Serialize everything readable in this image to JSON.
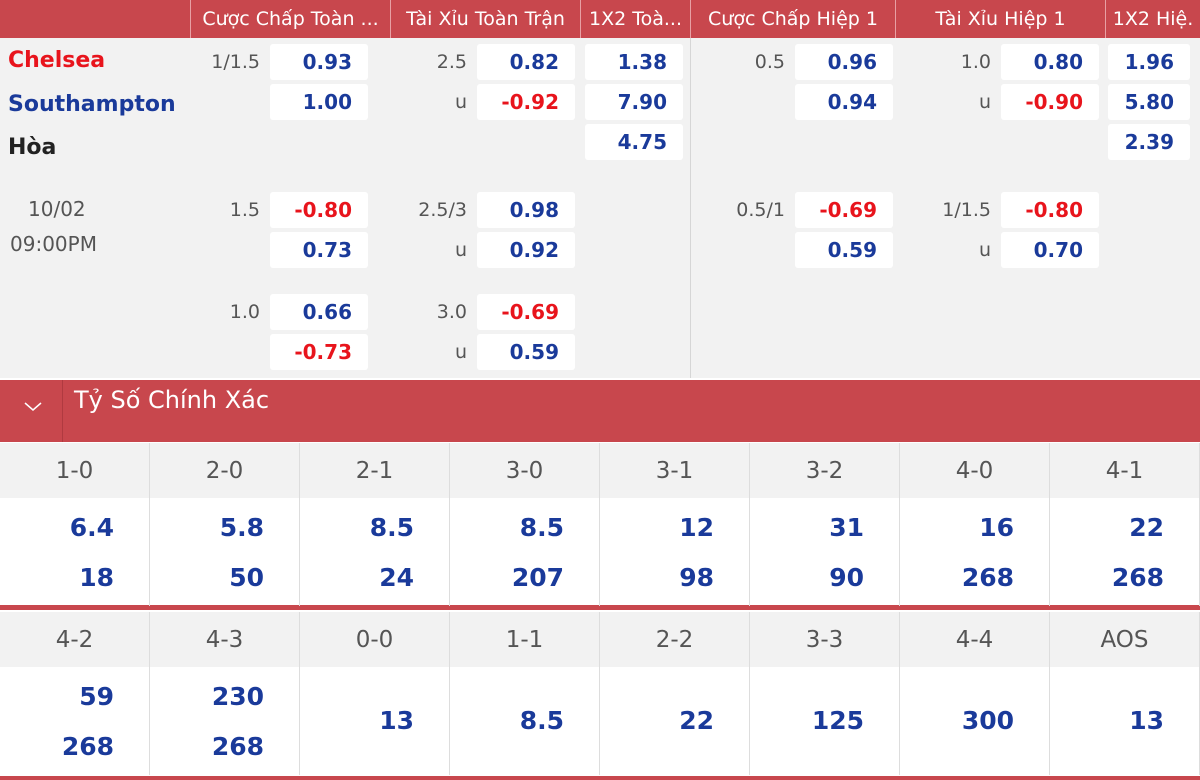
{
  "header": {
    "columns": [
      "Cược Chấp Toàn ...",
      "Tài Xỉu Toàn Trận",
      "1X2 Toà...",
      "Cược Chấp Hiệp 1",
      "Tài Xỉu Hiệp 1",
      "1X2 Hiệ."
    ]
  },
  "match": {
    "home": "Chelsea",
    "away": "Southampton",
    "draw": "Hòa",
    "date": "10/02",
    "time": "09:00PM"
  },
  "odds_groups": [
    {
      "ft_handicap": {
        "line": "1/1.5",
        "odds": [
          "0.93",
          "1.00"
        ]
      },
      "ft_over_under": {
        "line": "2.5",
        "under_label": "u",
        "odds": [
          "0.82",
          "-0.92"
        ]
      },
      "ft_1x2": {
        "odds": [
          "1.38",
          "7.90",
          "4.75"
        ]
      },
      "h1_handicap": {
        "line": "0.5",
        "odds": [
          "0.96",
          "0.94"
        ]
      },
      "h1_over_under": {
        "line": "1.0",
        "under_label": "u",
        "odds": [
          "0.80",
          "-0.90"
        ]
      },
      "h1_1x2": {
        "odds": [
          "1.96",
          "5.80",
          "2.39"
        ]
      }
    },
    {
      "ft_handicap": {
        "line": "1.5",
        "odds": [
          "-0.80",
          "0.73"
        ]
      },
      "ft_over_under": {
        "line": "2.5/3",
        "under_label": "u",
        "odds": [
          "0.98",
          "0.92"
        ]
      },
      "h1_handicap": {
        "line": "0.5/1",
        "odds": [
          "-0.69",
          "0.59"
        ]
      },
      "h1_over_under": {
        "line": "1/1.5",
        "under_label": "u",
        "odds": [
          "-0.80",
          "0.70"
        ]
      }
    },
    {
      "ft_handicap": {
        "line": "1.0",
        "odds": [
          "0.66",
          "-0.73"
        ]
      },
      "ft_over_under": {
        "line": "3.0",
        "under_label": "u",
        "odds": [
          "-0.69",
          "0.59"
        ]
      }
    }
  ],
  "correct_score": {
    "title": "Tỷ Số Chính Xác",
    "rows": [
      [
        {
          "score": "1-0",
          "odds": [
            "6.4",
            "18"
          ]
        },
        {
          "score": "2-0",
          "odds": [
            "5.8",
            "50"
          ]
        },
        {
          "score": "2-1",
          "odds": [
            "8.5",
            "24"
          ]
        },
        {
          "score": "3-0",
          "odds": [
            "8.5",
            "207"
          ]
        },
        {
          "score": "3-1",
          "odds": [
            "12",
            "98"
          ]
        },
        {
          "score": "3-2",
          "odds": [
            "31",
            "90"
          ]
        },
        {
          "score": "4-0",
          "odds": [
            "16",
            "268"
          ]
        },
        {
          "score": "4-1",
          "odds": [
            "22",
            "268"
          ]
        }
      ],
      [
        {
          "score": "4-2",
          "odds": [
            "59",
            "268"
          ]
        },
        {
          "score": "4-3",
          "odds": [
            "230",
            "268"
          ]
        },
        {
          "score": "0-0",
          "odds": [
            "13"
          ]
        },
        {
          "score": "1-1",
          "odds": [
            "8.5"
          ]
        },
        {
          "score": "2-2",
          "odds": [
            "22"
          ]
        },
        {
          "score": "3-3",
          "odds": [
            "125"
          ]
        },
        {
          "score": "4-4",
          "odds": [
            "300"
          ]
        },
        {
          "score": "AOS",
          "odds": [
            "13"
          ]
        }
      ]
    ]
  }
}
